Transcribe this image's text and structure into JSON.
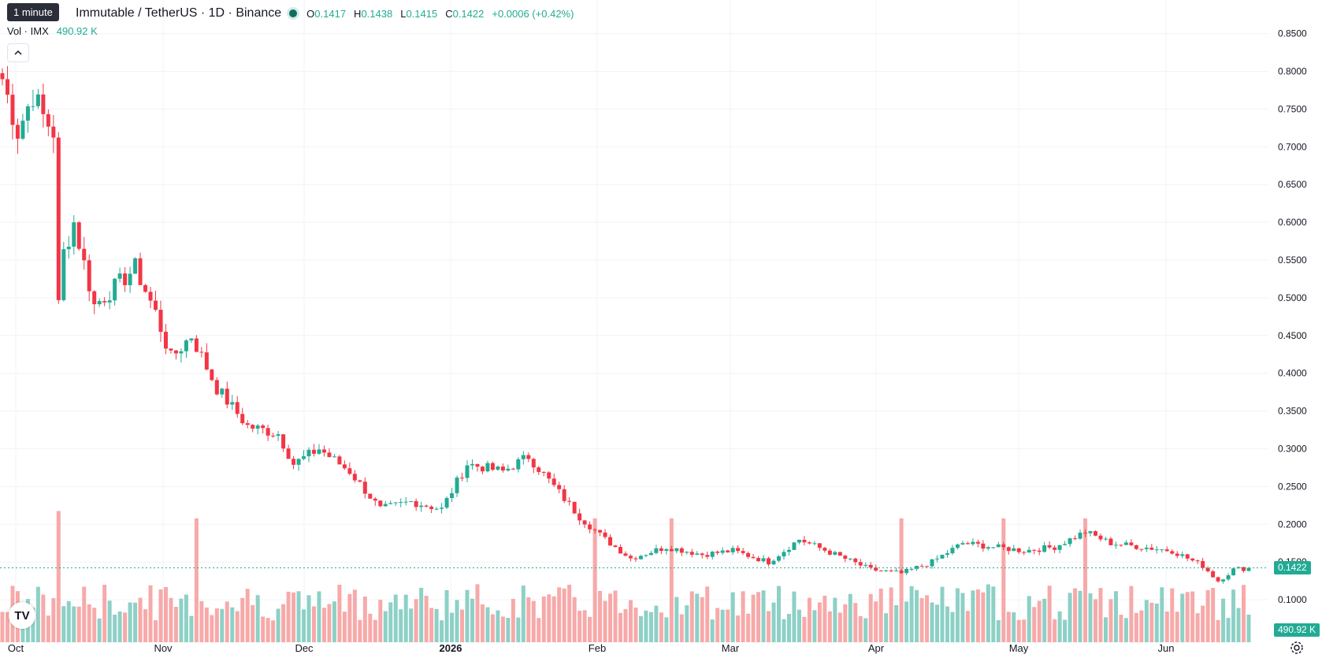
{
  "header": {
    "symbol_title": "Immutable / TetherUS · 1D · Binance",
    "tooltip": "1 minute",
    "ohlc": {
      "o_label": "O",
      "o": "0.1417",
      "h_label": "H",
      "h": "0.1438",
      "l_label": "L",
      "l": "0.1415",
      "c_label": "C",
      "c": "0.1422",
      "change": "+0.0006 (+0.42%)"
    },
    "volume_label": "Vol · IMX",
    "volume_value": "490.92 K"
  },
  "price_tag": "0.1422",
  "volume_tag": "490.92 K",
  "icons": {
    "collapse": "chevron-up-icon",
    "logo": "tradingview-logo",
    "settings": "settings-icon"
  },
  "logo_text": "TV",
  "colors": {
    "up": "#22ab94",
    "down": "#f23645",
    "up_volume": "#8dd0c6",
    "down_volume": "#f7a9a9",
    "grid": "#f0f3fa",
    "last_price_line": "#22ab94"
  },
  "chart_data": {
    "type": "candlestick",
    "title": "Immutable / TetherUS · 1D · Binance",
    "y_axis": {
      "ticks": [
        "0.8500",
        "0.8000",
        "0.7500",
        "0.7000",
        "0.6500",
        "0.6000",
        "0.5500",
        "0.5000",
        "0.4500",
        "0.4000",
        "0.3500",
        "0.3000",
        "0.2500",
        "0.2000",
        "0.1500",
        "0.1000"
      ],
      "ylim": [
        0.0,
        0.85
      ]
    },
    "x_axis": {
      "ticks": [
        "Oct",
        "Nov",
        "Dec",
        "2026",
        "Feb",
        "Mar",
        "Apr",
        "May",
        "Jun"
      ],
      "bold_tick": "2026"
    },
    "grid": true,
    "last_price": 0.1422,
    "price_anchors": [
      {
        "day": 0,
        "close": 0.79
      },
      {
        "day": 3,
        "close": 0.72
      },
      {
        "day": 6,
        "close": 0.77
      },
      {
        "day": 8,
        "close": 0.74
      },
      {
        "day": 10,
        "close": 0.72
      },
      {
        "day": 11,
        "close": 0.49
      },
      {
        "day": 12,
        "close": 0.56
      },
      {
        "day": 14,
        "close": 0.6
      },
      {
        "day": 18,
        "close": 0.49
      },
      {
        "day": 23,
        "close": 0.52
      },
      {
        "day": 26,
        "close": 0.54
      },
      {
        "day": 30,
        "close": 0.48
      },
      {
        "day": 33,
        "close": 0.42
      },
      {
        "day": 37,
        "close": 0.45
      },
      {
        "day": 42,
        "close": 0.38
      },
      {
        "day": 48,
        "close": 0.33
      },
      {
        "day": 54,
        "close": 0.32
      },
      {
        "day": 57,
        "close": 0.28
      },
      {
        "day": 62,
        "close": 0.3
      },
      {
        "day": 68,
        "close": 0.27
      },
      {
        "day": 74,
        "close": 0.22
      },
      {
        "day": 80,
        "close": 0.23
      },
      {
        "day": 86,
        "close": 0.22
      },
      {
        "day": 91,
        "close": 0.28
      },
      {
        "day": 98,
        "close": 0.27
      },
      {
        "day": 103,
        "close": 0.29
      },
      {
        "day": 108,
        "close": 0.25
      },
      {
        "day": 113,
        "close": 0.21
      },
      {
        "day": 118,
        "close": 0.18
      },
      {
        "day": 123,
        "close": 0.155
      },
      {
        "day": 130,
        "close": 0.17
      },
      {
        "day": 137,
        "close": 0.16
      },
      {
        "day": 143,
        "close": 0.165
      },
      {
        "day": 150,
        "close": 0.15
      },
      {
        "day": 156,
        "close": 0.18
      },
      {
        "day": 163,
        "close": 0.16
      },
      {
        "day": 170,
        "close": 0.14
      },
      {
        "day": 176,
        "close": 0.135
      },
      {
        "day": 182,
        "close": 0.15
      },
      {
        "day": 188,
        "close": 0.175
      },
      {
        "day": 194,
        "close": 0.17
      },
      {
        "day": 200,
        "close": 0.165
      },
      {
        "day": 206,
        "close": 0.17
      },
      {
        "day": 212,
        "close": 0.19
      },
      {
        "day": 217,
        "close": 0.175
      },
      {
        "day": 223,
        "close": 0.17
      },
      {
        "day": 229,
        "close": 0.165
      },
      {
        "day": 235,
        "close": 0.145
      },
      {
        "day": 238,
        "close": 0.125
      },
      {
        "day": 241,
        "close": 0.14
      },
      {
        "day": 244,
        "close": 0.1422
      }
    ],
    "volume_scale": {
      "max_k": 2000
    }
  }
}
